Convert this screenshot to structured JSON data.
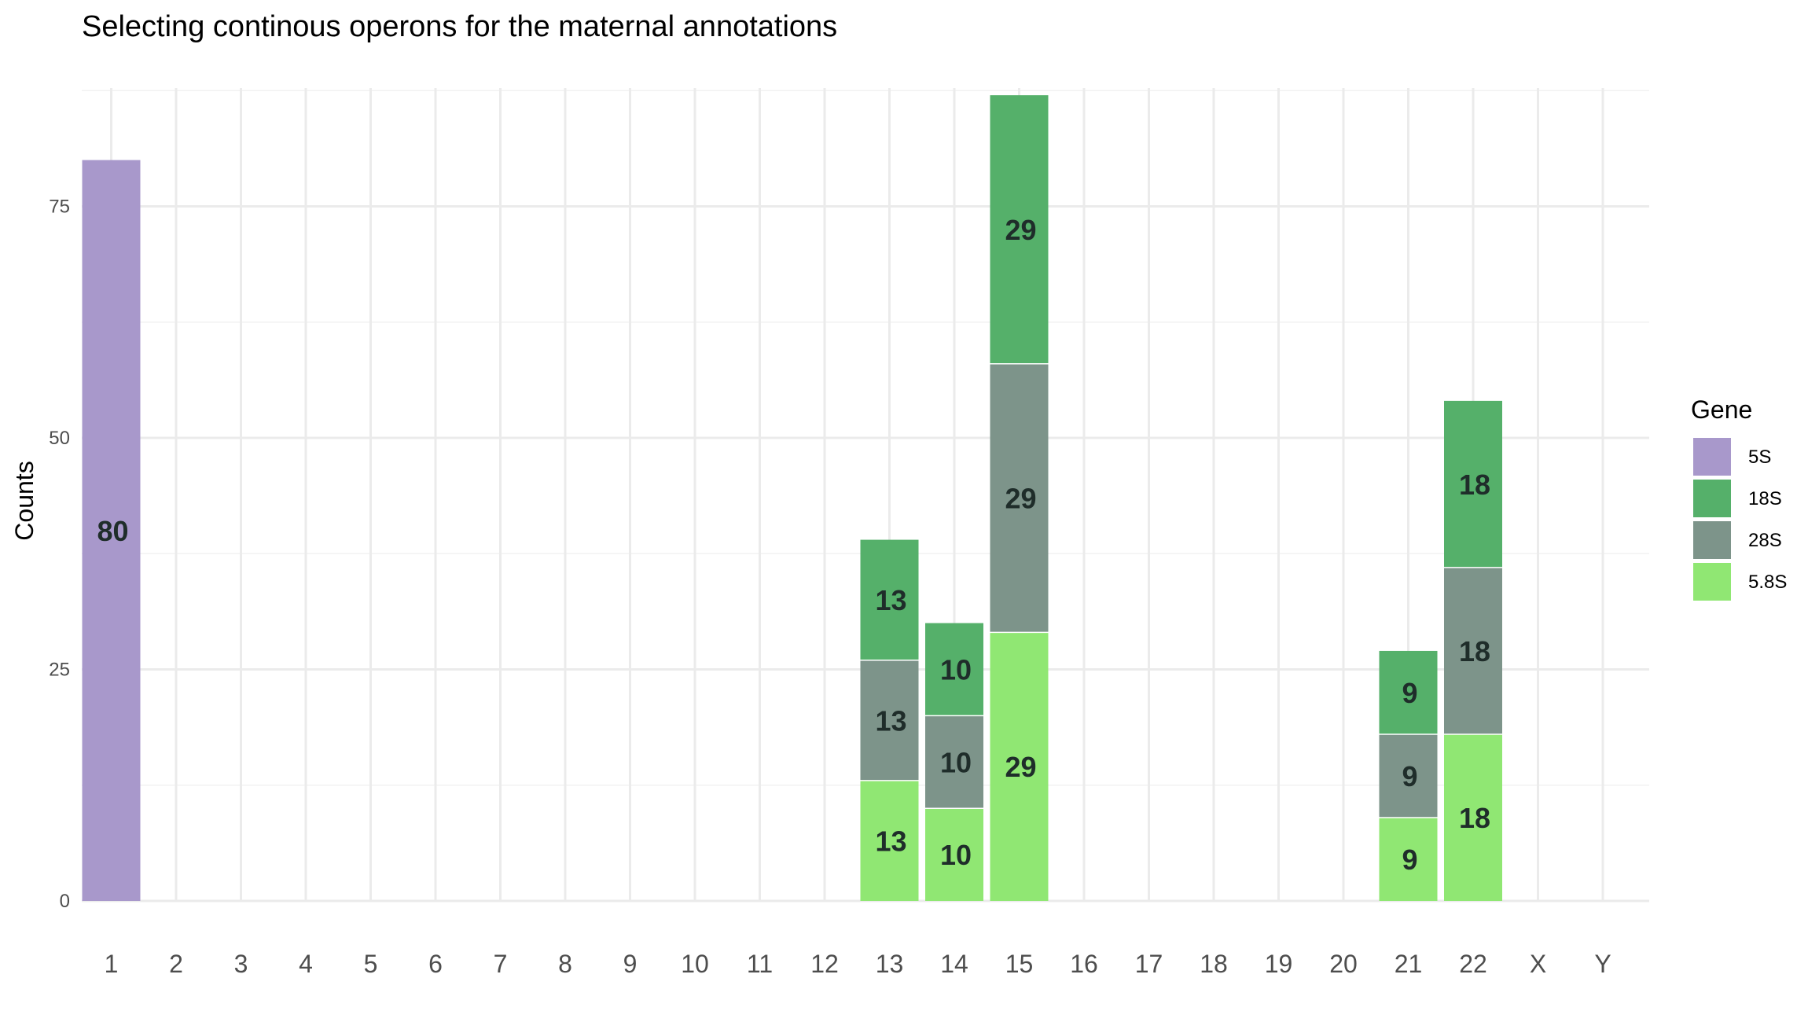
{
  "chart_data": {
    "type": "bar",
    "stacked": true,
    "title": "Selecting continous operons for the maternal annotations",
    "xlabel": "",
    "ylabel": "Counts",
    "ylim": [
      0,
      90
    ],
    "yticks": [
      0,
      25,
      50,
      75
    ],
    "grid": true,
    "legend_position": "right",
    "legend_title": "Gene",
    "categories": [
      "1",
      "2",
      "3",
      "4",
      "5",
      "6",
      "7",
      "8",
      "9",
      "10",
      "11",
      "12",
      "13",
      "14",
      "15",
      "16",
      "17",
      "18",
      "19",
      "20",
      "21",
      "22",
      "X",
      "Y"
    ],
    "series": [
      {
        "name": "5.8S",
        "color": "#90E773",
        "values": [
          0,
          0,
          0,
          0,
          0,
          0,
          0,
          0,
          0,
          0,
          0,
          0,
          13,
          10,
          29,
          0,
          0,
          0,
          0,
          0,
          9,
          18,
          0,
          0
        ]
      },
      {
        "name": "28S",
        "color": "#7D948A",
        "values": [
          0,
          0,
          0,
          0,
          0,
          0,
          0,
          0,
          0,
          0,
          0,
          0,
          13,
          10,
          29,
          0,
          0,
          0,
          0,
          0,
          9,
          18,
          0,
          0
        ]
      },
      {
        "name": "18S",
        "color": "#55B06A",
        "values": [
          0,
          0,
          0,
          0,
          0,
          0,
          0,
          0,
          0,
          0,
          0,
          0,
          13,
          10,
          29,
          0,
          0,
          0,
          0,
          0,
          9,
          18,
          0,
          0
        ]
      },
      {
        "name": "5S",
        "color": "#A898CB",
        "values": [
          80,
          0,
          0,
          0,
          0,
          0,
          0,
          0,
          0,
          0,
          0,
          0,
          0,
          0,
          0,
          0,
          0,
          0,
          0,
          0,
          0,
          0,
          0,
          0
        ]
      }
    ],
    "legend_order": [
      "5S",
      "18S",
      "28S",
      "5.8S"
    ]
  }
}
